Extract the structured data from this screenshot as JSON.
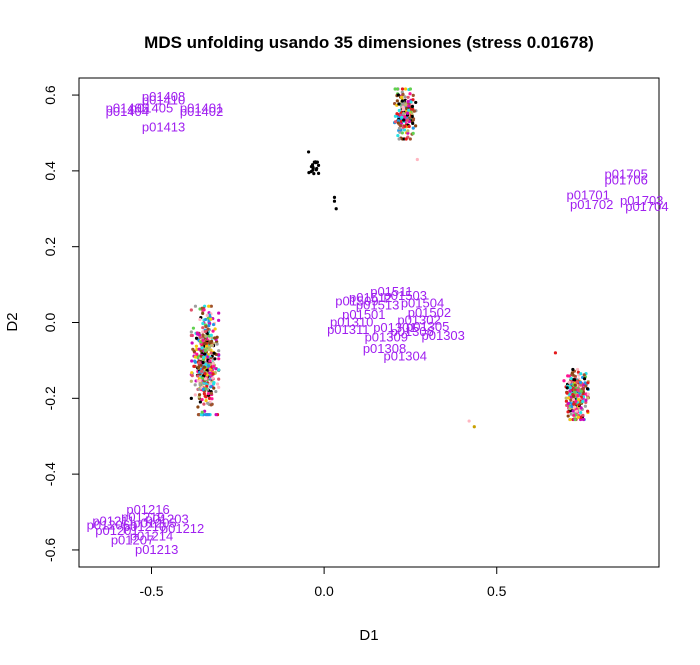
{
  "chart_data": {
    "type": "scatter",
    "title": "MDS unfolding usando 35 dimensiones (stress 0.01678)",
    "xlabel": "D1",
    "ylabel": "D2",
    "xlim": [
      -0.71,
      0.97
    ],
    "ylim": [
      -0.645,
      0.645
    ],
    "x_ticks": [
      -0.5,
      0.0,
      0.5
    ],
    "x_tick_labels": [
      "-0.5",
      "0.0",
      "0.5"
    ],
    "y_ticks": [
      -0.6,
      -0.4,
      -0.2,
      0.0,
      0.2,
      0.4,
      0.6
    ],
    "y_tick_labels": [
      "-0.6",
      "-0.4",
      "-0.2",
      "0.0",
      "0.2",
      "0.4",
      "0.6"
    ],
    "grid": false,
    "label_color": "#a020f0",
    "point_colors": [
      "#000000",
      "#df536b",
      "#61d04f",
      "#2297e6",
      "#28e2e5",
      "#cd0bbc",
      "#f5c710",
      "#9e9e9e",
      "#ff1493",
      "#8b4513",
      "#ffb6c1",
      "#bdb76b",
      "#a0522d",
      "#e41a1c"
    ],
    "point_clusters": [
      {
        "name": "cluster-left",
        "cx": -0.345,
        "cy": -0.1,
        "sx": 0.018,
        "sy": 0.065,
        "n": 420
      },
      {
        "name": "cluster-right",
        "cx": 0.73,
        "cy": -0.19,
        "sx": 0.016,
        "sy": 0.03,
        "n": 320
      },
      {
        "name": "cluster-top",
        "cx": 0.235,
        "cy": 0.55,
        "sx": 0.014,
        "sy": 0.03,
        "n": 200
      },
      {
        "name": "cluster-black",
        "cx": -0.03,
        "cy": 0.41,
        "sx": 0.007,
        "sy": 0.012,
        "n": 18
      }
    ],
    "extra_points": [
      {
        "x": 0.03,
        "y": 0.33,
        "color": "#000000"
      },
      {
        "x": 0.03,
        "y": 0.32,
        "color": "#000000"
      },
      {
        "x": 0.035,
        "y": 0.3,
        "color": "#000000"
      },
      {
        "x": -0.045,
        "y": 0.45,
        "color": "#000000"
      },
      {
        "x": 0.67,
        "y": -0.08,
        "color": "#e41a1c"
      },
      {
        "x": 0.42,
        "y": -0.26,
        "color": "#ffb6c1"
      },
      {
        "x": 0.435,
        "y": -0.275,
        "color": "#c8a000"
      },
      {
        "x": 0.27,
        "y": 0.43,
        "color": "#ffb6c1"
      }
    ],
    "labels": [
      {
        "text": "p01408",
        "x": -0.465,
        "y": 0.595
      },
      {
        "text": "p01410",
        "x": -0.465,
        "y": 0.585
      },
      {
        "text": "p01405",
        "x": -0.5,
        "y": 0.565
      },
      {
        "text": "p01406",
        "x": -0.57,
        "y": 0.565
      },
      {
        "text": "p01404",
        "x": -0.57,
        "y": 0.555
      },
      {
        "text": "p01401",
        "x": -0.355,
        "y": 0.565
      },
      {
        "text": "p01402",
        "x": -0.355,
        "y": 0.555
      },
      {
        "text": "p01413",
        "x": -0.465,
        "y": 0.515
      },
      {
        "text": "p01705",
        "x": 0.875,
        "y": 0.39
      },
      {
        "text": "p01706",
        "x": 0.875,
        "y": 0.375
      },
      {
        "text": "p01701",
        "x": 0.765,
        "y": 0.335
      },
      {
        "text": "p01702",
        "x": 0.775,
        "y": 0.31
      },
      {
        "text": "p01703",
        "x": 0.92,
        "y": 0.32
      },
      {
        "text": "p01704",
        "x": 0.935,
        "y": 0.305
      },
      {
        "text": "p01511",
        "x": 0.195,
        "y": 0.08
      },
      {
        "text": "p01512",
        "x": 0.135,
        "y": 0.065
      },
      {
        "text": "p01503",
        "x": 0.235,
        "y": 0.07
      },
      {
        "text": "p01509",
        "x": 0.095,
        "y": 0.055
      },
      {
        "text": "p01504",
        "x": 0.285,
        "y": 0.05
      },
      {
        "text": "p01513",
        "x": 0.155,
        "y": 0.045
      },
      {
        "text": "p01502",
        "x": 0.305,
        "y": 0.025
      },
      {
        "text": "p01501",
        "x": 0.115,
        "y": 0.02
      },
      {
        "text": "p01302",
        "x": 0.275,
        "y": 0.005
      },
      {
        "text": "p01310",
        "x": 0.08,
        "y": 0.0
      },
      {
        "text": "p01301",
        "x": 0.205,
        "y": -0.015
      },
      {
        "text": "p01305",
        "x": 0.3,
        "y": -0.012
      },
      {
        "text": "p01311",
        "x": 0.07,
        "y": -0.02
      },
      {
        "text": "p01306",
        "x": 0.255,
        "y": -0.025
      },
      {
        "text": "p01303",
        "x": 0.345,
        "y": -0.035
      },
      {
        "text": "p01309",
        "x": 0.18,
        "y": -0.04
      },
      {
        "text": "p01308",
        "x": 0.175,
        "y": -0.07
      },
      {
        "text": "p01304",
        "x": 0.235,
        "y": -0.09
      },
      {
        "text": "p01216",
        "x": -0.51,
        "y": -0.495
      },
      {
        "text": "p01219",
        "x": -0.525,
        "y": -0.515
      },
      {
        "text": "p01203",
        "x": -0.455,
        "y": -0.52
      },
      {
        "text": "p01211",
        "x": -0.61,
        "y": -0.525
      },
      {
        "text": "p01205",
        "x": -0.49,
        "y": -0.53
      },
      {
        "text": "p01206",
        "x": -0.625,
        "y": -0.535
      },
      {
        "text": "p01210",
        "x": -0.52,
        "y": -0.54
      },
      {
        "text": "p01212",
        "x": -0.41,
        "y": -0.545
      },
      {
        "text": "p01201",
        "x": -0.6,
        "y": -0.55
      },
      {
        "text": "p01214",
        "x": -0.5,
        "y": -0.565
      },
      {
        "text": "p01207",
        "x": -0.555,
        "y": -0.575
      },
      {
        "text": "p01213",
        "x": -0.485,
        "y": -0.6
      }
    ]
  }
}
